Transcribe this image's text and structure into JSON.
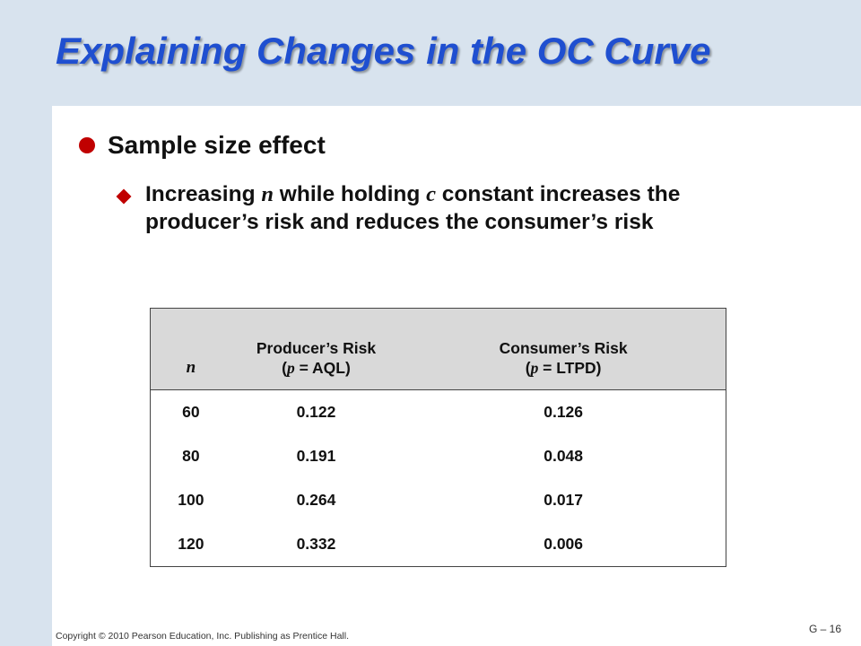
{
  "slide": {
    "title": "Explaining Changes in the OC Curve",
    "bullet_1": "Sample size effect",
    "bullet_2": {
      "part_1": "Increasing ",
      "var_n": "n",
      "part_2": " while holding ",
      "var_c": "c",
      "part_3": " constant increases the producer’s risk and reduces the consumer’s risk"
    }
  },
  "table": {
    "headers": {
      "n": "n",
      "producer_line_1": "Producer’s Risk",
      "producer_open": "(",
      "producer_var": "p",
      "producer_rest": " = AQL)",
      "consumer_line_1": "Consumer’s Risk",
      "consumer_open": "(",
      "consumer_var": "p",
      "consumer_rest": " = LTPD)"
    },
    "rows": [
      {
        "n": "60",
        "producer": "0.122",
        "consumer": "0.126"
      },
      {
        "n": "80",
        "producer": "0.191",
        "consumer": "0.048"
      },
      {
        "n": "100",
        "producer": "0.264",
        "consumer": "0.017"
      },
      {
        "n": "120",
        "producer": "0.332",
        "consumer": "0.006"
      }
    ]
  },
  "footer": {
    "copyright": "Copyright © 2010 Pearson Education, Inc. Publishing as Prentice Hall.",
    "slide_number": "G – 16"
  },
  "colors": {
    "title": "#1f4fd0",
    "bullet": "#c00000",
    "background_band": "#d8e3ee",
    "table_header": "#d9d9d9"
  }
}
